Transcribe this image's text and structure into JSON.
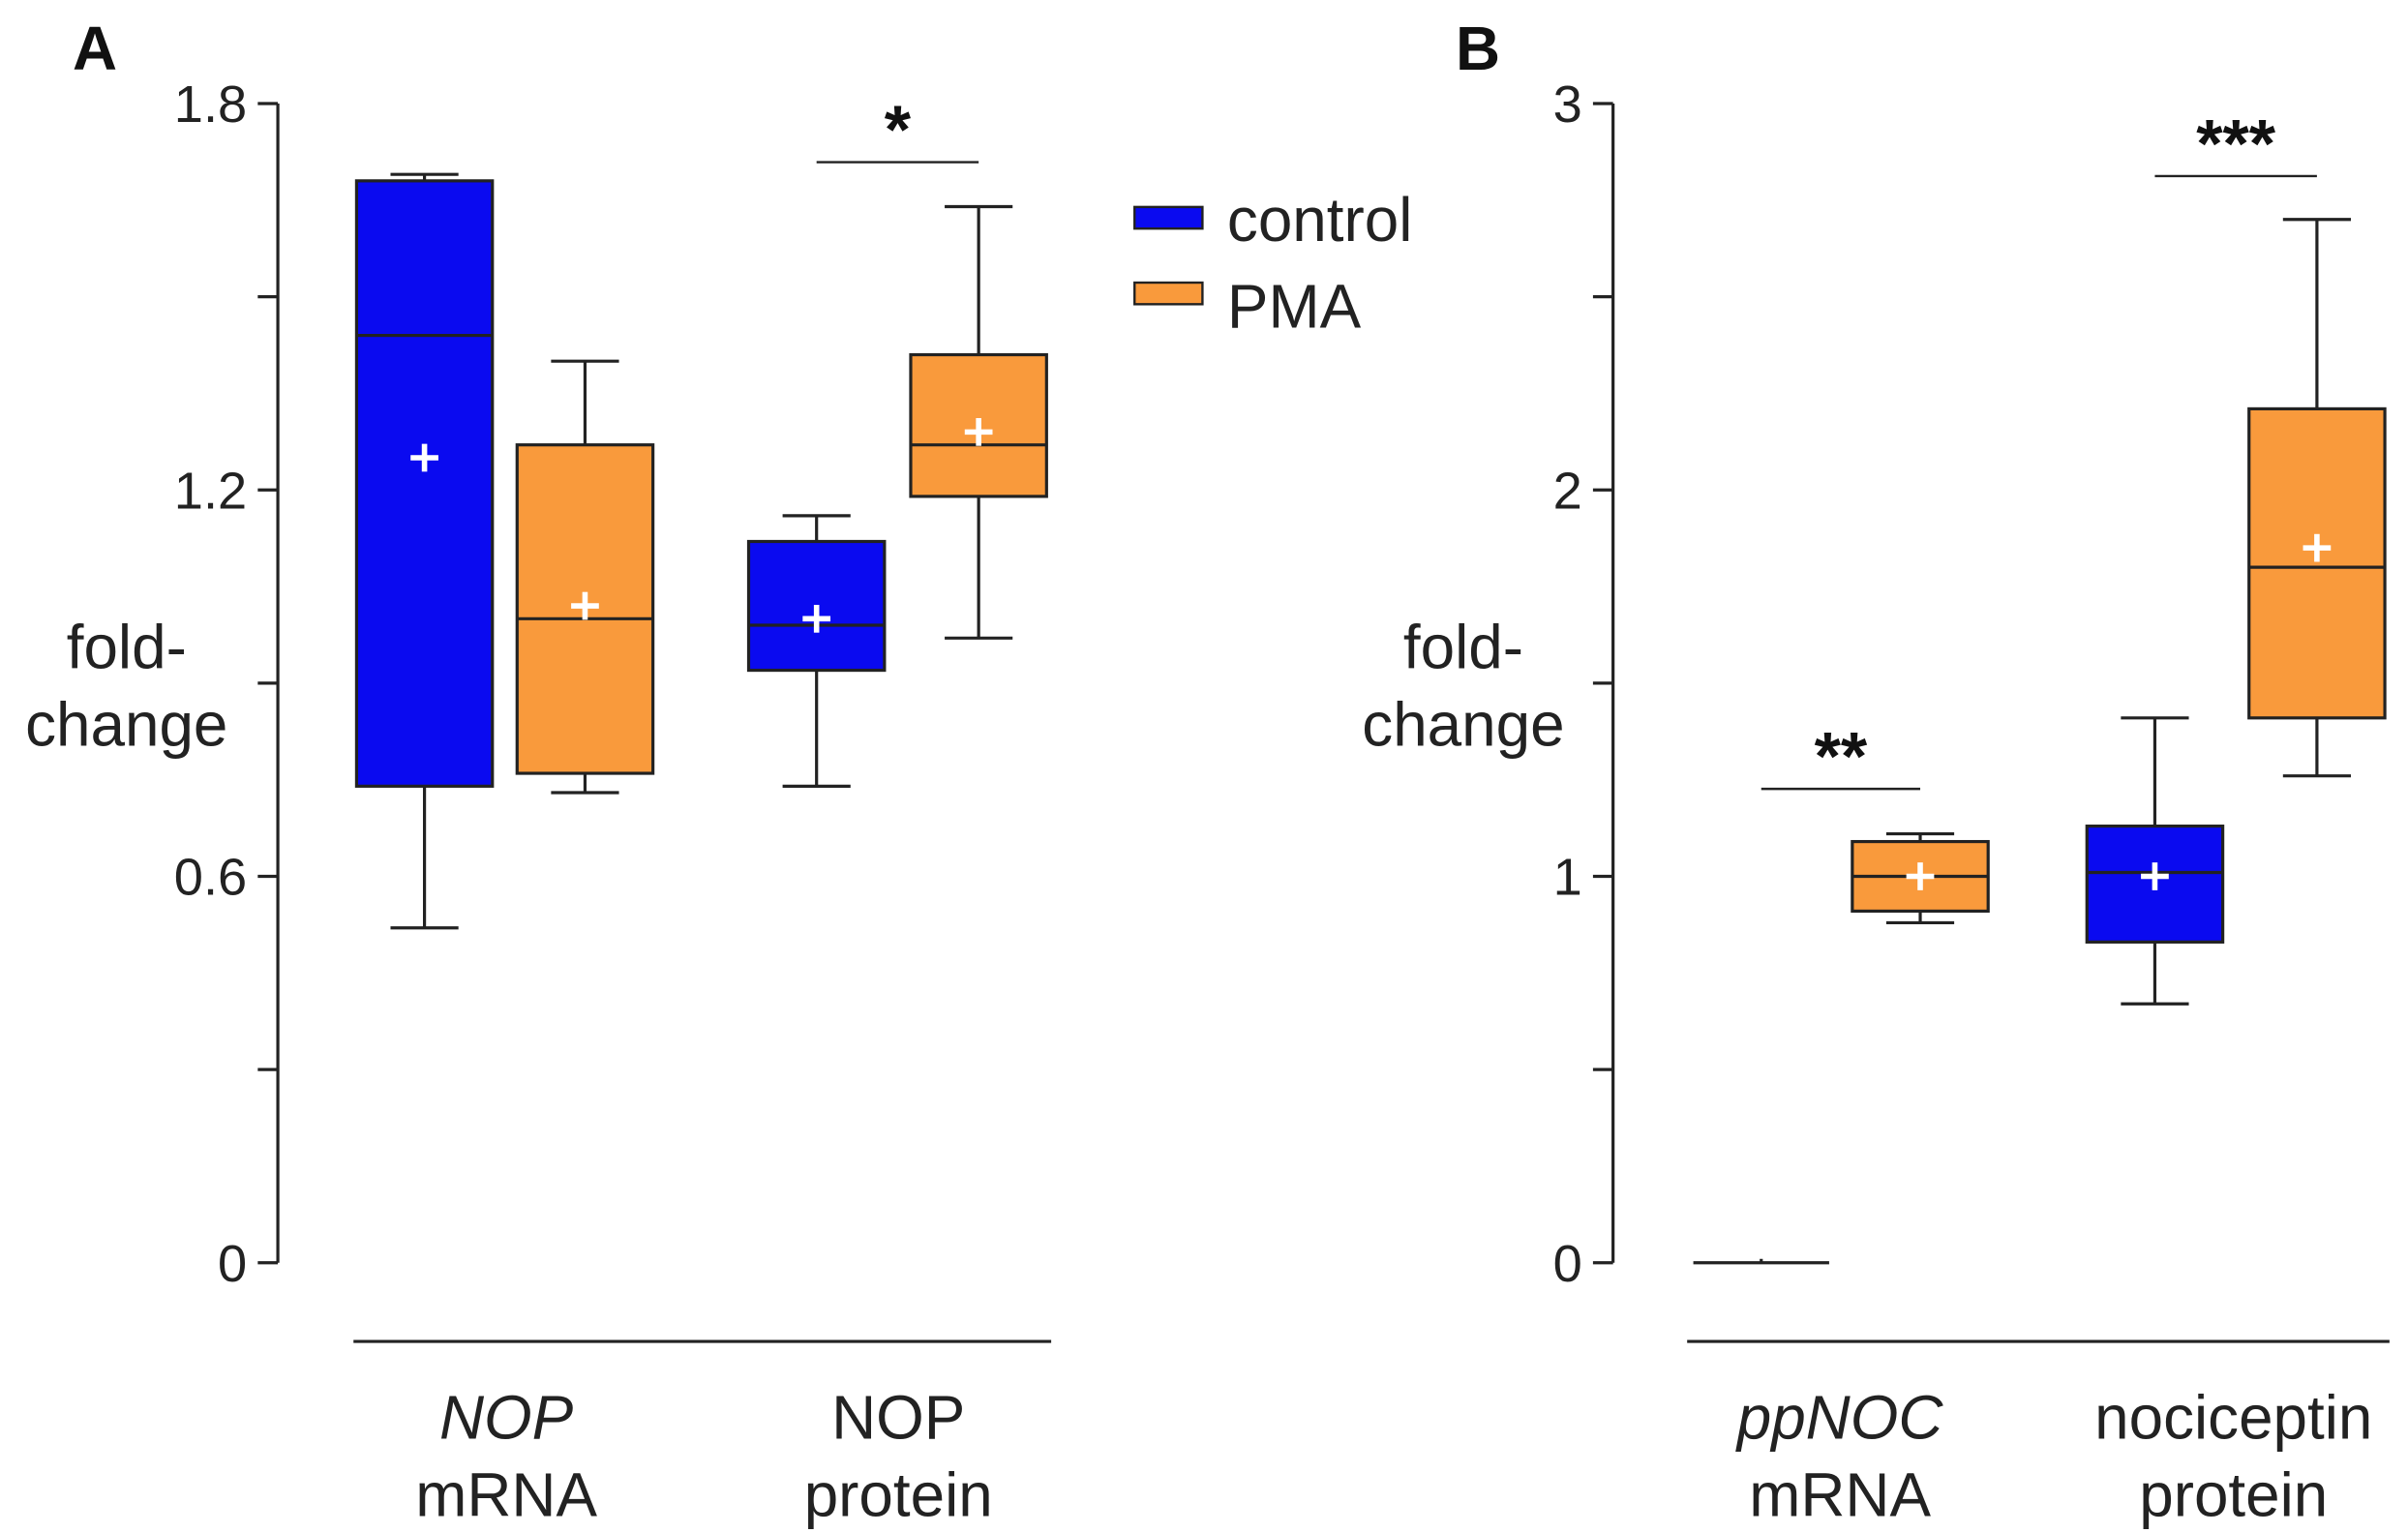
{
  "legend": [
    {
      "label": "control",
      "color": "#0a0af0"
    },
    {
      "label": "PMA",
      "color": "#f99a3c"
    }
  ],
  "chart_data": [
    {
      "type": "box",
      "panel": "A",
      "ylabel": [
        "fold-",
        "change"
      ],
      "ylim": [
        0,
        1.8
      ],
      "yticks": [
        0,
        0.3,
        0.6,
        0.9,
        1.2,
        1.5,
        1.8
      ],
      "ytick_labels": [
        "0",
        "",
        "0.6",
        "",
        "1.2",
        "",
        "1.8"
      ],
      "categories": [
        {
          "line1": "NOP",
          "line1_italic": true,
          "line2": "mRNA"
        },
        {
          "line1": "NOP",
          "line1_italic": false,
          "line2": "protein"
        }
      ],
      "boxes": [
        {
          "category": 0,
          "series": "control",
          "min": 0.52,
          "q1": 0.74,
          "median": 1.44,
          "q3": 1.68,
          "max": 1.69,
          "mean": 1.25
        },
        {
          "category": 0,
          "series": "PMA",
          "min": 0.73,
          "q1": 0.76,
          "median": 1.0,
          "q3": 1.27,
          "max": 1.4,
          "mean": 1.02
        },
        {
          "category": 1,
          "series": "control",
          "min": 0.74,
          "q1": 0.92,
          "median": 0.99,
          "q3": 1.12,
          "max": 1.16,
          "mean": 1.0
        },
        {
          "category": 1,
          "series": "PMA",
          "min": 0.97,
          "q1": 1.19,
          "median": 1.27,
          "q3": 1.41,
          "max": 1.64,
          "mean": 1.29
        }
      ],
      "significance": [
        {
          "category": 1,
          "label": "*"
        }
      ]
    },
    {
      "type": "box",
      "panel": "B",
      "ylabel": [
        "fold-",
        "change"
      ],
      "ylim": [
        0,
        3
      ],
      "yticks": [
        0,
        0.5,
        1,
        1.5,
        2,
        2.5,
        3
      ],
      "ytick_labels": [
        "0",
        "",
        "1",
        "",
        "2",
        "",
        "3"
      ],
      "categories": [
        {
          "line1": "ppNOC",
          "line1_italic": true,
          "line2": "mRNA"
        },
        {
          "line1": "nociceptin",
          "line1_italic": false,
          "line2": "protein"
        }
      ],
      "boxes": [
        {
          "category": 0,
          "series": "control",
          "min": 0,
          "q1": 0,
          "median": 0,
          "q3": 0,
          "max": 0.01,
          "mean": 0
        },
        {
          "category": 0,
          "series": "PMA",
          "min": 0.88,
          "q1": 0.91,
          "median": 1.0,
          "q3": 1.09,
          "max": 1.11,
          "mean": 1.0
        },
        {
          "category": 1,
          "series": "control",
          "min": 0.67,
          "q1": 0.83,
          "median": 1.01,
          "q3": 1.13,
          "max": 1.41,
          "mean": 1.0
        },
        {
          "category": 1,
          "series": "PMA",
          "min": 1.26,
          "q1": 1.41,
          "median": 1.8,
          "q3": 2.21,
          "max": 2.7,
          "mean": 1.85
        }
      ],
      "significance": [
        {
          "category": 0,
          "label": "**"
        },
        {
          "category": 1,
          "label": "***"
        }
      ]
    }
  ]
}
